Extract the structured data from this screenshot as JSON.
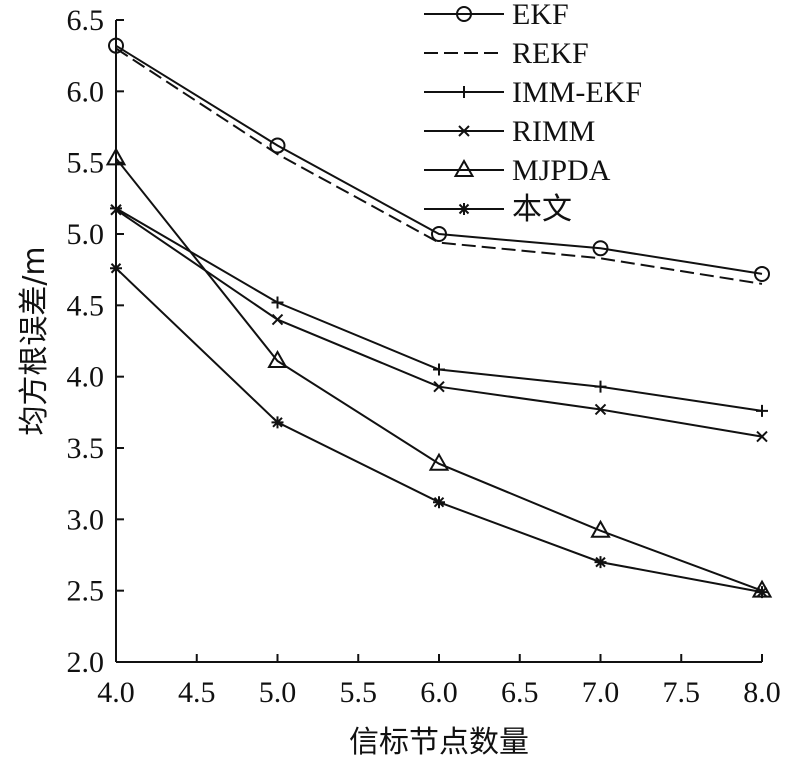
{
  "chart_data": {
    "type": "line",
    "title": "",
    "xlabel": "信标节点数量",
    "ylabel": "均方根误差/m",
    "xlim": [
      4.0,
      8.0
    ],
    "ylim": [
      2.0,
      6.5
    ],
    "x_ticks": [
      "4.0",
      "4.5",
      "5.0",
      "5.5",
      "6.0",
      "6.5",
      "7.0",
      "7.5",
      "8.0"
    ],
    "y_ticks": [
      "2.0",
      "2.5",
      "3.0",
      "3.5",
      "4.0",
      "4.5",
      "5.0",
      "5.5",
      "6.0",
      "6.5"
    ],
    "x_tick_values": [
      4.0,
      4.5,
      5.0,
      5.5,
      6.0,
      6.5,
      7.0,
      7.5,
      8.0
    ],
    "y_tick_values": [
      2.0,
      2.5,
      3.0,
      3.5,
      4.0,
      4.5,
      5.0,
      5.5,
      6.0,
      6.5
    ],
    "x": [
      4.0,
      5.0,
      6.0,
      7.0,
      8.0
    ],
    "grid": false,
    "legend_position": "top-right",
    "series": [
      {
        "name": "EKF",
        "values": [
          6.32,
          5.62,
          5.0,
          4.9,
          4.72
        ],
        "marker": "circle",
        "line": "solid"
      },
      {
        "name": "REKF",
        "values": [
          6.3,
          5.56,
          4.94,
          4.83,
          4.65
        ],
        "marker": "none",
        "line": "dashed"
      },
      {
        "name": "IMM-EKF",
        "values": [
          5.18,
          4.52,
          4.05,
          3.93,
          3.76
        ],
        "marker": "plus",
        "line": "solid"
      },
      {
        "name": "RIMM",
        "values": [
          5.17,
          4.4,
          3.93,
          3.77,
          3.58
        ],
        "marker": "cross",
        "line": "solid"
      },
      {
        "name": "MJPDA",
        "values": [
          5.53,
          4.11,
          3.39,
          2.92,
          2.5
        ],
        "marker": "triangle",
        "line": "solid"
      },
      {
        "name": "本文",
        "values": [
          4.76,
          3.68,
          3.12,
          2.7,
          2.49
        ],
        "marker": "asterisk",
        "line": "solid"
      }
    ]
  }
}
